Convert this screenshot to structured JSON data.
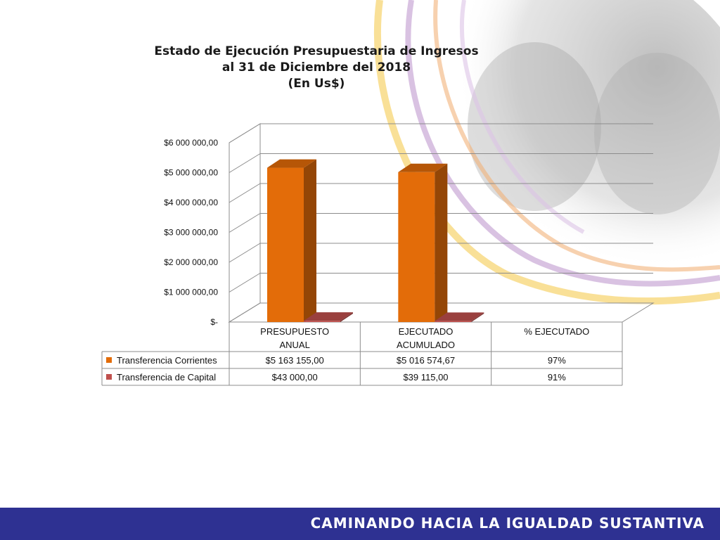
{
  "chart_data": {
    "type": "bar",
    "title_lines": [
      "Estado de Ejecución Presupuestaria de Ingresos",
      "al 31 de Diciembre del 2018",
      "(En Us$)"
    ],
    "categories": [
      [
        "PRESUPUESTO",
        "ANUAL"
      ],
      [
        "EJECUTADO",
        "ACUMULADO"
      ],
      [
        "% EJECUTADO"
      ]
    ],
    "series": [
      {
        "name": "Transferencia Corrientes",
        "color": "#e36c09",
        "values": [
          5163155.0,
          5016574.67,
          0.97
        ],
        "table_values": [
          "$5 163 155,00",
          "$5 016 574,67",
          "97%"
        ]
      },
      {
        "name": "Transferencia de Capital",
        "color": "#c0504d",
        "values": [
          43000.0,
          39115.0,
          0.91
        ],
        "table_values": [
          "$43 000,00",
          "$39 115,00",
          "91%"
        ]
      }
    ],
    "y_tick_labels": [
      "$-",
      "$1 000 000,00",
      "$2 000 000,00",
      "$3 000 000,00",
      "$4 000 000,00",
      "$5 000 000,00",
      "$6 000 000,00"
    ],
    "ylim": [
      0,
      6000000
    ],
    "grid": true,
    "legend": "data-table"
  },
  "footer": {
    "text": "CAMINANDO HACIA LA IGUALDAD SUSTANTIVA"
  }
}
